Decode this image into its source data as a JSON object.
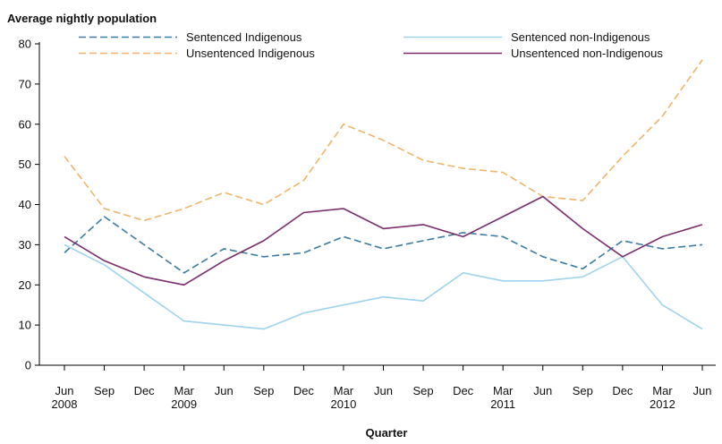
{
  "chart_data": {
    "type": "line",
    "ylabel": "Average nightly population",
    "xlabel": "Quarter",
    "ylim": [
      0,
      80
    ],
    "yticks": [
      0,
      10,
      20,
      30,
      40,
      50,
      60,
      70,
      80
    ],
    "categories": [
      "Jun 2008",
      "Sep 2008",
      "Dec 2008",
      "Mar 2009",
      "Jun 2009",
      "Sep 2009",
      "Dec 2009",
      "Mar 2010",
      "Jun 2010",
      "Sep 2010",
      "Dec 2010",
      "Mar 2011",
      "Jun 2011",
      "Sep 2011",
      "Dec 2011",
      "Mar 2012",
      "Jun 2012"
    ],
    "tick_labels": [
      {
        "line1": "Jun",
        "line2": "2008"
      },
      {
        "line1": "Sep",
        "line2": ""
      },
      {
        "line1": "Dec",
        "line2": ""
      },
      {
        "line1": "Mar",
        "line2": "2009"
      },
      {
        "line1": "Jun",
        "line2": ""
      },
      {
        "line1": "Sep",
        "line2": ""
      },
      {
        "line1": "Dec",
        "line2": ""
      },
      {
        "line1": "Mar",
        "line2": "2010"
      },
      {
        "line1": "Jun",
        "line2": ""
      },
      {
        "line1": "Sep",
        "line2": ""
      },
      {
        "line1": "Dec",
        "line2": ""
      },
      {
        "line1": "Mar",
        "line2": "2011"
      },
      {
        "line1": "Jun",
        "line2": ""
      },
      {
        "line1": "Sep",
        "line2": ""
      },
      {
        "line1": "Dec",
        "line2": ""
      },
      {
        "line1": "Mar",
        "line2": "2012"
      },
      {
        "line1": "Jun",
        "line2": ""
      }
    ],
    "grid": false,
    "legend_position": "top",
    "series": [
      {
        "name": "Sentenced Indigenous",
        "color": "#3a7ca5",
        "style": "dashed",
        "values": [
          28,
          37,
          30,
          23,
          29,
          27,
          28,
          32,
          29,
          31,
          33,
          32,
          27,
          24,
          31,
          29,
          30
        ]
      },
      {
        "name": "Sentenced non-Indigenous",
        "color": "#9fd3ee",
        "style": "solid",
        "values": [
          30,
          25,
          18,
          11,
          10,
          9,
          13,
          15,
          17,
          16,
          23,
          21,
          21,
          22,
          27,
          15,
          9
        ]
      },
      {
        "name": "Unsentenced Indigenous",
        "color": "#f0b46a",
        "style": "dashed",
        "values": [
          52,
          39,
          36,
          39,
          43,
          40,
          46,
          60,
          56,
          51,
          49,
          48,
          42,
          41,
          52,
          62,
          76
        ]
      },
      {
        "name": "Unsentenced non-Indigenous",
        "color": "#7b2d6e",
        "style": "solid",
        "values": [
          32,
          26,
          22,
          20,
          26,
          31,
          38,
          39,
          34,
          35,
          32,
          37,
          42,
          34,
          27,
          32,
          35
        ]
      }
    ]
  }
}
